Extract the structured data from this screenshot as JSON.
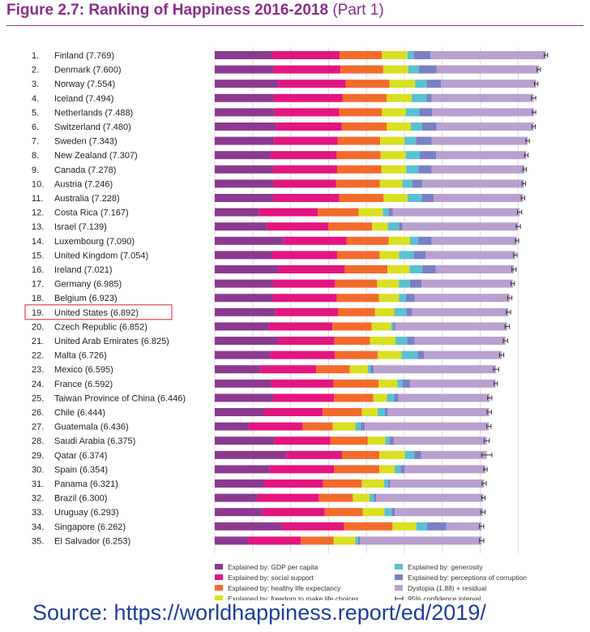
{
  "title": {
    "main": "Figure 2.7: Ranking of Happiness 2016-2018",
    "part": "(Part 1)"
  },
  "source": "Source: https://worldhappiness.report/ed/2019/",
  "highlight_color": "#d9232e",
  "chart_data": {
    "type": "bar",
    "orientation": "horizontal",
    "stacked": true,
    "highlighted_row": "19. United States (6.892)",
    "categories": [
      "1. Finland (7.769)",
      "2. Denmark (7.600)",
      "3. Norway (7.554)",
      "4. Iceland (7.494)",
      "5. Netherlands (7.488)",
      "6. Switzerland (7.480)",
      "7. Sweden (7.343)",
      "8. New Zealand (7.307)",
      "9. Canada (7.278)",
      "10. Austria (7.246)",
      "11. Australia (7.228)",
      "12. Costa Rica (7.167)",
      "13. Israel (7.139)",
      "14. Luxembourg (7.090)",
      "15. United Kingdom (7.054)",
      "16. Ireland (7.021)",
      "17. Germany (6.985)",
      "18. Belgium (6.923)",
      "19. United States (6.892)",
      "20. Czech Republic (6.852)",
      "21. United Arab Emirates (6.825)",
      "22. Malta (6.726)",
      "23. Mexico (6.595)",
      "24. France (6.592)",
      "25. Taiwan Province of China (6.446)",
      "26. Chile (6.444)",
      "27. Guatemala (6.436)",
      "28. Saudi Arabia (6.375)",
      "29. Qatar (6.374)",
      "30. Spain (6.354)",
      "31. Panama (6.321)",
      "32. Brazil (6.300)",
      "33. Uruguay (6.293)",
      "34. Singapore (6.262)",
      "35. El Salvador (6.253)"
    ],
    "series": [
      {
        "name": "Explained by: GDP per capita",
        "color": "#8b3a8f",
        "values": [
          1.34,
          1.38,
          1.49,
          1.38,
          1.4,
          1.45,
          1.39,
          1.3,
          1.37,
          1.38,
          1.37,
          1.03,
          1.23,
          1.61,
          1.33,
          1.5,
          1.37,
          1.36,
          1.43,
          1.27,
          1.5,
          1.3,
          1.07,
          1.32,
          1.37,
          1.16,
          0.8,
          1.4,
          1.68,
          1.29,
          1.15,
          1.0,
          1.12,
          1.57,
          0.79
        ]
      },
      {
        "name": "Explained by: social support",
        "color": "#e3157f",
        "values": [
          1.59,
          1.57,
          1.58,
          1.62,
          1.52,
          1.53,
          1.49,
          1.56,
          1.5,
          1.47,
          1.55,
          1.39,
          1.43,
          1.48,
          1.54,
          1.55,
          1.45,
          1.5,
          1.46,
          1.49,
          1.31,
          1.52,
          1.31,
          1.47,
          1.43,
          1.37,
          1.26,
          1.31,
          1.31,
          1.51,
          1.39,
          1.44,
          1.46,
          1.46,
          1.23
        ]
      },
      {
        "name": "Explained by: healthy life expectancy",
        "color": "#f26b2d",
        "values": [
          0.99,
          1.0,
          1.03,
          1.03,
          1.0,
          1.05,
          1.0,
          1.03,
          1.04,
          1.02,
          1.04,
          0.96,
          1.03,
          0.99,
          1.0,
          1.0,
          0.99,
          0.99,
          0.87,
          0.92,
          0.83,
          1.0,
          0.79,
          1.05,
          0.92,
          0.92,
          0.71,
          0.88,
          0.87,
          1.06,
          0.91,
          0.8,
          0.89,
          1.14,
          0.77
        ]
      },
      {
        "name": "Explained by: freedom to make life choices",
        "color": "#d9e021",
        "values": [
          0.6,
          0.59,
          0.6,
          0.59,
          0.56,
          0.57,
          0.57,
          0.59,
          0.58,
          0.53,
          0.56,
          0.56,
          0.37,
          0.5,
          0.45,
          0.52,
          0.51,
          0.47,
          0.45,
          0.46,
          0.6,
          0.56,
          0.42,
          0.44,
          0.32,
          0.37,
          0.53,
          0.41,
          0.6,
          0.36,
          0.52,
          0.39,
          0.51,
          0.56,
          0.51
        ]
      },
      {
        "name": "Explained by: generosity",
        "color": "#5bc1d0",
        "values": [
          0.15,
          0.25,
          0.27,
          0.35,
          0.32,
          0.26,
          0.27,
          0.33,
          0.29,
          0.24,
          0.33,
          0.14,
          0.26,
          0.19,
          0.35,
          0.3,
          0.26,
          0.16,
          0.28,
          0.05,
          0.27,
          0.38,
          0.07,
          0.12,
          0.17,
          0.17,
          0.13,
          0.1,
          0.22,
          0.14,
          0.1,
          0.1,
          0.17,
          0.25,
          0.06
        ]
      },
      {
        "name": "Explained by: perceptions of corruption",
        "color": "#7b7fc4",
        "values": [
          0.39,
          0.41,
          0.34,
          0.12,
          0.3,
          0.34,
          0.37,
          0.38,
          0.31,
          0.23,
          0.29,
          0.1,
          0.08,
          0.32,
          0.28,
          0.31,
          0.27,
          0.21,
          0.13,
          0.04,
          0.18,
          0.15,
          0.07,
          0.18,
          0.1,
          0.06,
          0.09,
          0.1,
          0.16,
          0.1,
          0.05,
          0.06,
          0.07,
          0.45,
          0.05
        ]
      },
      {
        "name": "Dystopia (1.88) + residual",
        "color": "#b9a0ce",
        "values": [
          2.71,
          2.4,
          2.23,
          2.39,
          2.39,
          2.28,
          2.25,
          2.12,
          2.18,
          2.38,
          2.09,
          2.97,
          2.72,
          2.0,
          2.1,
          1.84,
          2.14,
          2.23,
          2.27,
          2.63,
          2.13,
          1.82,
          2.87,
          2.01,
          2.14,
          2.39,
          2.91,
          2.18,
          1.54,
          1.89,
          2.2,
          2.51,
          2.07,
          0.83,
          2.85
        ]
      }
    ],
    "legend_extra": "95% confidence interval",
    "ci_halfwidths": [
      0.04,
      0.04,
      0.04,
      0.05,
      0.04,
      0.04,
      0.04,
      0.04,
      0.04,
      0.04,
      0.04,
      0.05,
      0.05,
      0.04,
      0.04,
      0.05,
      0.04,
      0.05,
      0.05,
      0.05,
      0.05,
      0.05,
      0.06,
      0.04,
      0.05,
      0.05,
      0.05,
      0.06,
      0.12,
      0.04,
      0.05,
      0.04,
      0.05,
      0.05,
      0.05
    ],
    "xlim": [
      0,
      8
    ],
    "legend_position": "bottom"
  }
}
